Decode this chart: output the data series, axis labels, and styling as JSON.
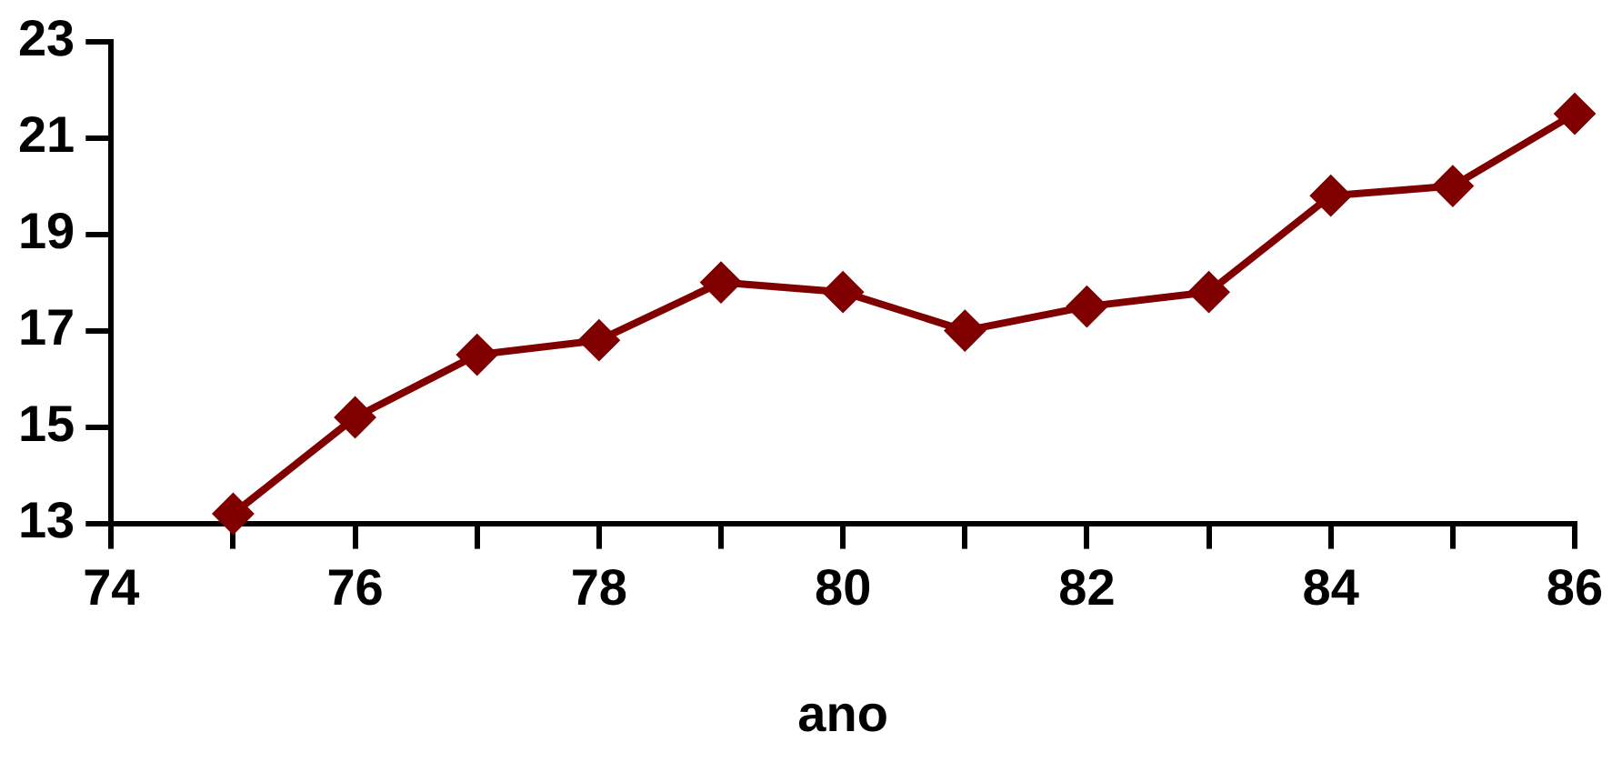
{
  "chart_data": {
    "type": "line",
    "xlabel": "ano",
    "x": [
      75,
      76,
      77,
      78,
      79,
      80,
      81,
      82,
      83,
      84,
      85,
      86
    ],
    "series": [
      {
        "color": "#800000",
        "values": [
          13.2,
          15.2,
          16.5,
          16.8,
          18.0,
          17.8,
          17.0,
          17.5,
          17.8,
          19.8,
          20.0,
          21.5
        ]
      }
    ],
    "xlim": [
      74,
      86
    ],
    "xticks": [
      74,
      {
        "value": 75,
        "label": null
      },
      76,
      {
        "value": 77,
        "label": null
      },
      78,
      {
        "value": 79,
        "label": null
      },
      80,
      {
        "value": 81,
        "label": null
      },
      82,
      {
        "value": 83,
        "label": null
      },
      84,
      {
        "value": 85,
        "label": null
      },
      86
    ],
    "ylim": [
      13,
      23
    ],
    "yticks": [
      13,
      15,
      17,
      19,
      21,
      23
    ],
    "grid": false,
    "legend": false,
    "marker": "diamond",
    "line_style": "solid"
  }
}
